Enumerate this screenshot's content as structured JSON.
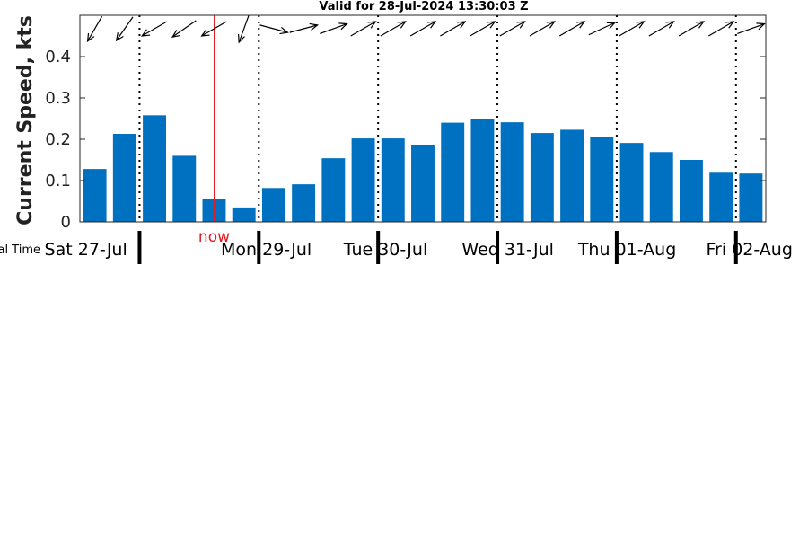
{
  "chart_data": {
    "type": "bar",
    "title": "Valid for 28-Jul-2024 13:30:03 Z",
    "ylabel": "Current Speed, kts",
    "timezone_label": "Local Time",
    "ylim": [
      0,
      0.5
    ],
    "yticks": [
      0,
      0.1,
      0.2,
      0.3,
      0.4
    ],
    "ytick_labels": [
      "0",
      "0.1",
      "0.2",
      "0.3",
      "0.4"
    ],
    "grid": false,
    "values": [
      0.128,
      0.213,
      0.258,
      0.16,
      0.055,
      0.035,
      0.082,
      0.091,
      0.154,
      0.202,
      0.202,
      0.187,
      0.24,
      0.248,
      0.241,
      0.215,
      0.223,
      0.206,
      0.191,
      0.169,
      0.15,
      0.119,
      0.117
    ],
    "directions_deg": [
      210,
      215,
      240,
      235,
      240,
      200,
      105,
      75,
      70,
      60,
      60,
      60,
      60,
      60,
      60,
      60,
      60,
      65,
      60,
      60,
      60,
      60,
      70
    ],
    "bar_color": "#0070c0",
    "now_marker": {
      "label": "now",
      "bar_position": 4.0,
      "color": "#e8191e"
    },
    "day_labels": [
      "Sat 27-Jul",
      "Mon 29-Jul",
      "Tue 30-Jul",
      "Wed 31-Jul",
      "Thu 01-Aug",
      "Fri 02-Aug"
    ],
    "day_label_bar_positions": [
      -0.3,
      5.75,
      9.75,
      13.85,
      17.85,
      21.95
    ],
    "day_boundary_bar_positions": [
      1.5,
      5.5,
      9.5,
      13.5,
      17.5,
      21.5
    ]
  }
}
